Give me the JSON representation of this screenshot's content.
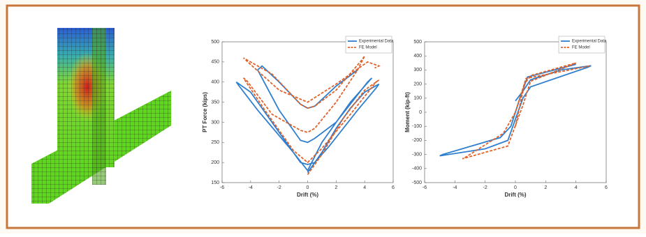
{
  "chart_data": [
    {
      "type": "line",
      "xlabel": "Drift (%)",
      "ylabel": "PT Force (kips)",
      "xlim": [
        -6,
        6
      ],
      "ylim": [
        150,
        500
      ],
      "xticks": [
        -6,
        -4,
        -2,
        0,
        2,
        4,
        6
      ],
      "yticks": [
        150,
        200,
        250,
        300,
        350,
        400,
        450,
        500
      ],
      "legend": "upper right",
      "series": [
        {
          "name": "Experimental Data",
          "color": "#2f7fcf",
          "linestyle": "solid",
          "x": [
            0,
            1,
            2,
            3,
            4,
            5,
            4.8,
            3.5,
            1.5,
            0.5,
            0,
            -0.5,
            -1.5,
            -3,
            -4,
            -5,
            -4.8,
            -3.5,
            -1,
            0,
            1,
            3,
            4.5,
            4.2,
            2,
            0.5,
            0,
            -0.5,
            -2,
            -3.5,
            -3.2,
            -2,
            -0.5,
            0,
            0.5,
            2,
            3.5
          ],
          "values": [
            175,
            225,
            285,
            335,
            375,
            395,
            385,
            330,
            240,
            200,
            195,
            200,
            250,
            325,
            375,
            400,
            390,
            330,
            225,
            180,
            250,
            350,
            410,
            400,
            300,
            260,
            250,
            255,
            330,
            430,
            440,
            400,
            345,
            335,
            340,
            390,
            430
          ]
        },
        {
          "name": "FE Model",
          "color": "#e0622a",
          "linestyle": "dashed",
          "x": [
            0,
            1,
            2.5,
            4,
            5,
            4.8,
            3,
            1,
            0,
            -1,
            -3,
            -4.5,
            -4.3,
            -2.5,
            -0.5,
            0,
            0.5,
            2,
            3.5,
            4,
            3.8,
            2,
            0.5,
            0,
            -0.5,
            -2.5,
            -4.5,
            -4.2,
            -2,
            0,
            2,
            4.2,
            5,
            4.7
          ],
          "values": [
            170,
            220,
            310,
            380,
            405,
            400,
            320,
            235,
            200,
            230,
            330,
            410,
            405,
            320,
            280,
            275,
            285,
            350,
            430,
            465,
            455,
            380,
            340,
            335,
            345,
            420,
            460,
            450,
            380,
            350,
            395,
            450,
            440,
            435
          ]
        }
      ]
    },
    {
      "type": "line",
      "xlabel": "Drift (%)",
      "ylabel": "Moment (kip-ft)",
      "xlim": [
        -6,
        6
      ],
      "ylim": [
        -500,
        500
      ],
      "xticks": [
        -6,
        -4,
        -2,
        0,
        2,
        4,
        6
      ],
      "yticks": [
        -500,
        -400,
        -300,
        -200,
        -100,
        0,
        100,
        200,
        300,
        400,
        500
      ],
      "legend": "upper right",
      "series": [
        {
          "name": "Experimental Data",
          "color": "#2f7fcf",
          "linestyle": "solid",
          "x": [
            0,
            0.5,
            1,
            3,
            5,
            4.8,
            1,
            0.5,
            0,
            -0.5,
            -2,
            -5,
            -4.8,
            -1,
            -0.3,
            0.3,
            0.8,
            4
          ],
          "values": [
            80,
            150,
            230,
            300,
            330,
            320,
            180,
            100,
            -50,
            -200,
            -260,
            -310,
            -300,
            -180,
            -100,
            100,
            250,
            340
          ]
        },
        {
          "name": "FE Model",
          "color": "#e0622a",
          "linestyle": "dashed",
          "x": [
            0,
            0.6,
            1,
            4,
            3.8,
            1,
            0.5,
            -0.5,
            -3.5,
            -3.3,
            -0.8,
            0,
            0.7,
            5
          ],
          "values": [
            -100,
            200,
            260,
            350,
            340,
            220,
            50,
            -240,
            -330,
            -320,
            -150,
            0,
            240,
            330
          ]
        }
      ]
    }
  ]
}
